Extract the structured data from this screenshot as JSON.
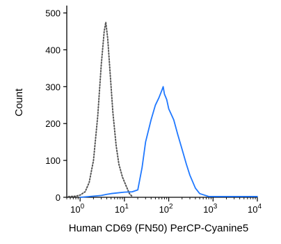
{
  "chart_data": {
    "type": "line",
    "title": "",
    "xlabel": "Human CD69 (FN50) PerCP-Cyanine5",
    "ylabel": "Count",
    "x_scale": "log",
    "xlim": [
      0.5,
      10000
    ],
    "ylim": [
      0,
      520
    ],
    "grid": false,
    "legend": "none",
    "x_ticks": [
      {
        "value": 1,
        "base": "10",
        "exp": "0"
      },
      {
        "value": 10,
        "base": "10",
        "exp": "1"
      },
      {
        "value": 100,
        "base": "10",
        "exp": "2"
      },
      {
        "value": 1000,
        "base": "10",
        "exp": "3"
      },
      {
        "value": 10000,
        "base": "10",
        "exp": "4"
      }
    ],
    "y_ticks": [
      "0",
      "100",
      "200",
      "300",
      "400",
      "500"
    ],
    "series": [
      {
        "style": "dotted",
        "color": "#555555",
        "x": [
          0.55,
          0.8,
          1.0,
          1.3,
          1.6,
          2.0,
          2.5,
          3.0,
          3.5,
          3.8,
          4.2,
          4.8,
          5.5,
          6.5,
          7.5,
          9.0,
          11.0,
          13.0,
          15.0
        ],
        "y": [
          2,
          3,
          6,
          15,
          40,
          100,
          220,
          360,
          450,
          475,
          430,
          330,
          230,
          140,
          90,
          55,
          30,
          10,
          2
        ]
      },
      {
        "style": "solid",
        "color": "#1f78ff",
        "x": [
          1.0,
          2.0,
          3.0,
          4.0,
          5.0,
          7.0,
          10.0,
          15.0,
          20.0,
          25.0,
          30.0,
          40.0,
          50.0,
          60.0,
          70.0,
          75.0,
          80.0,
          90.0,
          100.0,
          130.0,
          160.0,
          200.0,
          250.0,
          300.0,
          400.0,
          500.0,
          800.0,
          10000.0
        ],
        "y": [
          0,
          3,
          5,
          8,
          10,
          12,
          14,
          15,
          20,
          80,
          150,
          210,
          250,
          270,
          290,
          300,
          280,
          265,
          240,
          210,
          170,
          130,
          90,
          60,
          25,
          10,
          2,
          2
        ]
      }
    ]
  }
}
